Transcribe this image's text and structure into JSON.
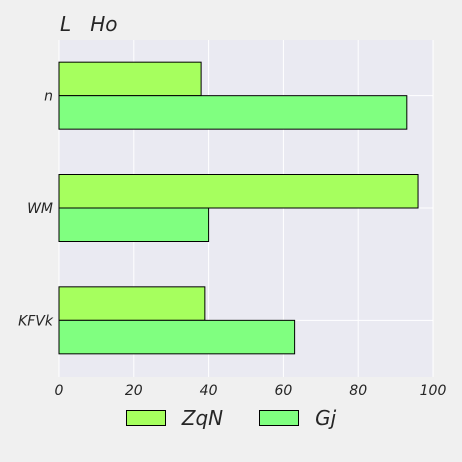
{
  "chart_data": {
    "type": "bar",
    "orientation": "horizontal",
    "title": "L   Ho",
    "categories": [
      "n",
      "WM",
      "KFVk"
    ],
    "series": [
      {
        "name": "ZqN",
        "values": [
          38,
          96,
          39
        ],
        "color": "#a6ff5e"
      },
      {
        "name": "Gj",
        "values": [
          93,
          40,
          63
        ],
        "color": "#80ff80"
      }
    ],
    "xlim": [
      0,
      100
    ],
    "xticks": [
      0,
      20,
      40,
      60,
      80,
      100
    ],
    "xlabel": "",
    "ylabel": "",
    "grid": true,
    "legend_position": "bottom",
    "colors": {
      "plot_background": "#eaeaf2",
      "page_background": "#f0f0f0",
      "grid": "#ffffff",
      "bar_edge": "#000000"
    }
  }
}
